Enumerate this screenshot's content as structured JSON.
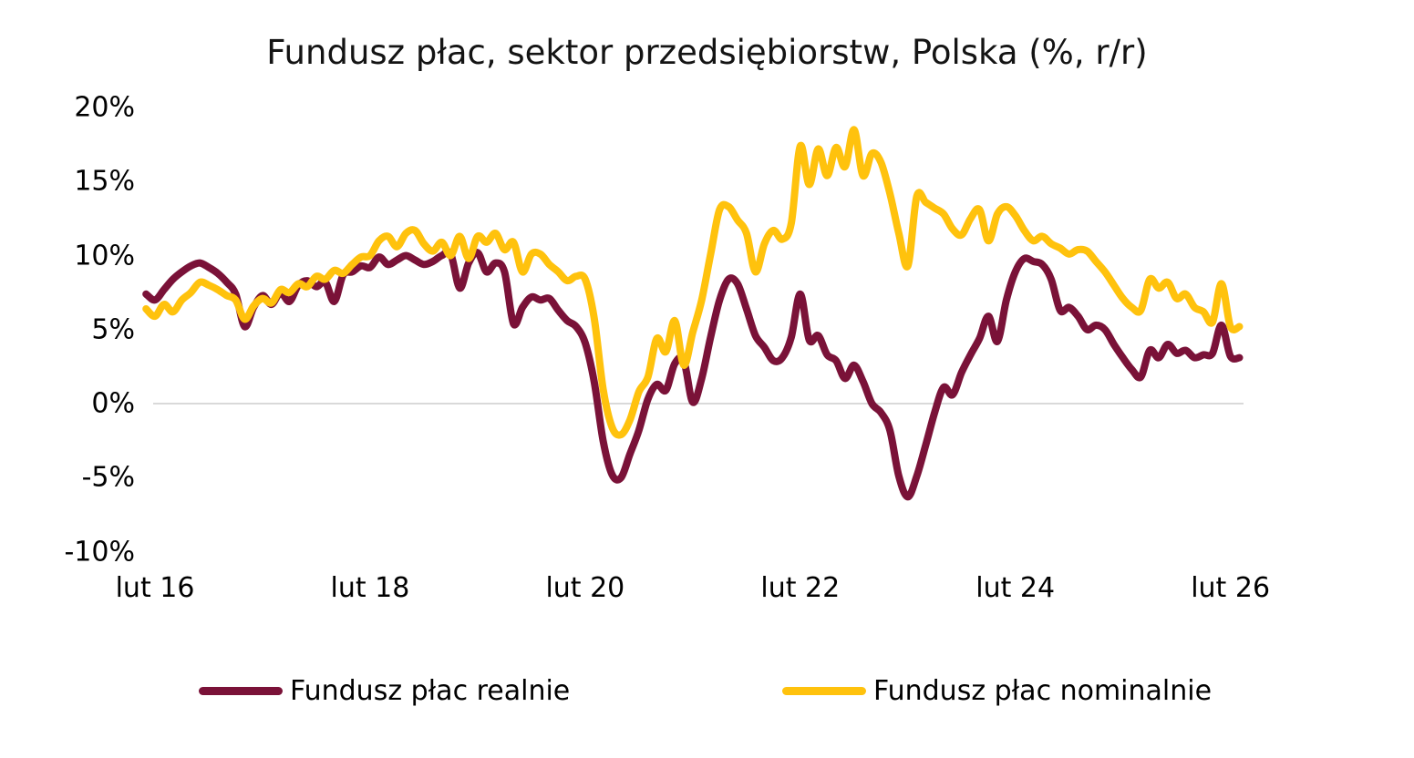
{
  "chart_data": {
    "type": "line",
    "title": "Fundusz płac, sektor przedsiębiorstw, Polska (%, r/r)",
    "xlabel": "",
    "ylabel": "",
    "x_unit": "monthly",
    "x_start": "sty 2016",
    "x_end": "mar 2026",
    "ylim": [
      -10,
      20
    ],
    "grid": "single horizontal gridline at 0% only",
    "legend_position": "bottom",
    "background_color": "#FFFFFF",
    "text_color": "#141414",
    "zero_gridline_color": "#D9D9D9",
    "y_ticks": [
      {
        "label": "20%",
        "value": 20
      },
      {
        "label": "15%",
        "value": 15
      },
      {
        "label": "10%",
        "value": 10
      },
      {
        "label": "5%",
        "value": 5
      },
      {
        "label": "0%",
        "value": 0
      },
      {
        "label": "-5%",
        "value": -5
      },
      {
        "label": "-10%",
        "value": -10
      }
    ],
    "x_ticks": [
      {
        "label": "lut 16",
        "month_index": 1
      },
      {
        "label": "lut 18",
        "month_index": 25
      },
      {
        "label": "lut 20",
        "month_index": 49
      },
      {
        "label": "lut 22",
        "month_index": 73
      },
      {
        "label": "lut 24",
        "month_index": 97
      },
      {
        "label": "lut 26",
        "month_index": 121
      }
    ],
    "series": [
      {
        "name": "Fundusz płac realnie",
        "color": "#7A1238",
        "values": [
          7.4,
          7.0,
          7.7,
          8.4,
          8.9,
          9.3,
          9.5,
          9.2,
          8.8,
          8.2,
          7.4,
          5.2,
          6.5,
          7.3,
          6.7,
          7.5,
          6.9,
          8.0,
          8.3,
          7.9,
          8.2,
          6.9,
          8.7,
          8.9,
          9.3,
          9.2,
          9.9,
          9.4,
          9.7,
          10.0,
          9.7,
          9.4,
          9.6,
          10.0,
          10.1,
          7.8,
          9.5,
          10.2,
          8.9,
          9.5,
          8.9,
          5.4,
          6.5,
          7.2,
          7.0,
          7.1,
          6.3,
          5.6,
          5.2,
          4.1,
          1.5,
          -2.5,
          -4.8,
          -5.0,
          -3.4,
          -1.8,
          0.3,
          1.3,
          0.9,
          2.7,
          2.9,
          0.1,
          1.7,
          4.5,
          7.0,
          8.4,
          8.1,
          6.4,
          4.6,
          3.8,
          2.9,
          3.1,
          4.5,
          7.4,
          4.3,
          4.6,
          3.3,
          2.9,
          1.7,
          2.6,
          1.5,
          0.0,
          -0.6,
          -1.8,
          -4.9,
          -6.3,
          -4.9,
          -2.8,
          -0.6,
          1.1,
          0.6,
          2.1,
          3.3,
          4.4,
          5.9,
          4.2,
          7.0,
          8.9,
          9.8,
          9.6,
          9.4,
          8.4,
          6.3,
          6.5,
          5.9,
          5.0,
          5.3,
          5.0,
          4.0,
          3.1,
          2.3,
          1.8,
          3.6,
          3.1,
          4.0,
          3.4,
          3.6,
          3.1,
          3.3,
          3.4,
          5.3,
          3.2,
          3.1
        ]
      },
      {
        "name": "Fundusz płac nominalnie",
        "color": "#FFC20D",
        "values": [
          6.4,
          5.9,
          6.7,
          6.2,
          7.0,
          7.5,
          8.2,
          8.0,
          7.7,
          7.3,
          7.0,
          5.7,
          6.6,
          7.1,
          6.8,
          7.7,
          7.5,
          8.1,
          7.9,
          8.6,
          8.4,
          9.0,
          8.8,
          9.4,
          9.9,
          10.0,
          11.0,
          11.3,
          10.6,
          11.5,
          11.7,
          10.8,
          10.3,
          10.9,
          10.0,
          11.3,
          9.8,
          11.3,
          10.9,
          11.5,
          10.4,
          10.9,
          8.9,
          10.1,
          10.1,
          9.4,
          8.9,
          8.3,
          8.6,
          8.4,
          5.8,
          1.0,
          -1.6,
          -2.1,
          -1.1,
          0.8,
          1.8,
          4.4,
          3.5,
          5.6,
          2.6,
          4.8,
          7.0,
          10.1,
          13.1,
          13.3,
          12.4,
          11.5,
          8.9,
          10.8,
          11.7,
          11.1,
          12.2,
          17.4,
          14.8,
          17.2,
          15.4,
          17.3,
          16.0,
          18.5,
          15.4,
          16.9,
          16.3,
          14.2,
          11.5,
          9.3,
          14.0,
          13.6,
          13.2,
          12.8,
          11.8,
          11.4,
          12.5,
          13.1,
          11.0,
          12.8,
          13.3,
          12.7,
          11.7,
          11.0,
          11.3,
          10.8,
          10.5,
          10.1,
          10.4,
          10.3,
          9.6,
          8.9,
          8.0,
          7.1,
          6.5,
          6.3,
          8.4,
          7.8,
          8.2,
          7.1,
          7.4,
          6.5,
          6.2,
          5.5,
          8.1,
          5.2,
          5.2
        ]
      }
    ]
  }
}
